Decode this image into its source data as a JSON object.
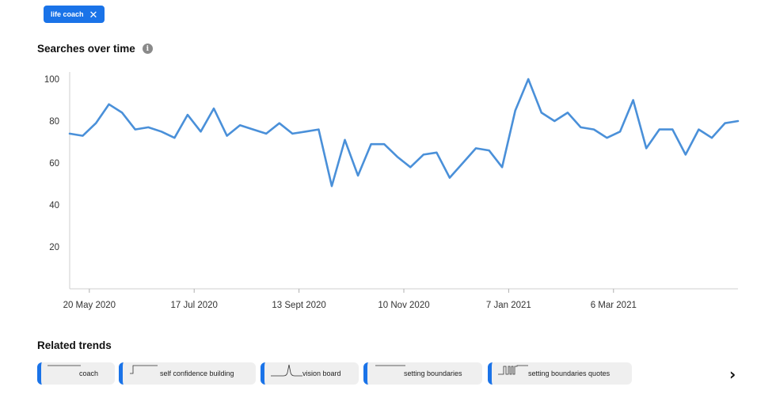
{
  "filter_chip": {
    "label": "life coach",
    "remove_glyph": "✕"
  },
  "searches_section": {
    "title": "Searches over time",
    "info_glyph": "i"
  },
  "chart_data": {
    "type": "line",
    "title": "Searches over time",
    "xlabel": "",
    "ylabel": "",
    "ylim": [
      0,
      100
    ],
    "y_ticks": [
      20,
      40,
      60,
      80,
      100
    ],
    "x_tick_labels": [
      "20 May 2020",
      "17 Jul 2020",
      "13 Sept 2020",
      "10 Nov 2020",
      "7 Jan 2021",
      "6 Mar 2021"
    ],
    "x_tick_index": [
      1.5,
      9.5,
      17.5,
      25.5,
      33.5,
      41.5
    ],
    "color": "#4a90d9",
    "grid": false,
    "values": [
      74,
      73,
      79,
      88,
      84,
      76,
      77,
      75,
      72,
      83,
      75,
      86,
      73,
      78,
      76,
      74,
      79,
      74,
      75,
      76,
      49,
      71,
      54,
      69,
      69,
      63,
      58,
      64,
      65,
      53,
      60,
      67,
      66,
      58,
      85,
      100,
      84,
      80,
      84,
      77,
      76,
      72,
      75,
      90,
      67,
      76,
      76,
      64,
      76,
      72,
      79,
      80
    ]
  },
  "related_section": {
    "title": "Related trends"
  },
  "related_trends": [
    {
      "label": "coach",
      "sparkline": "flat"
    },
    {
      "label": "self confidence building",
      "sparkline": "step-up"
    },
    {
      "label": "vision board",
      "sparkline": "spike"
    },
    {
      "label": "setting boundaries",
      "sparkline": "flat"
    },
    {
      "label": "setting boundaries quotes",
      "sparkline": "pulses"
    }
  ],
  "next_glyph": "›",
  "colors": {
    "accent": "#1a73e8",
    "line": "#4a90d9",
    "axis": "#cfcfcf",
    "card_bg": "#efefef"
  }
}
